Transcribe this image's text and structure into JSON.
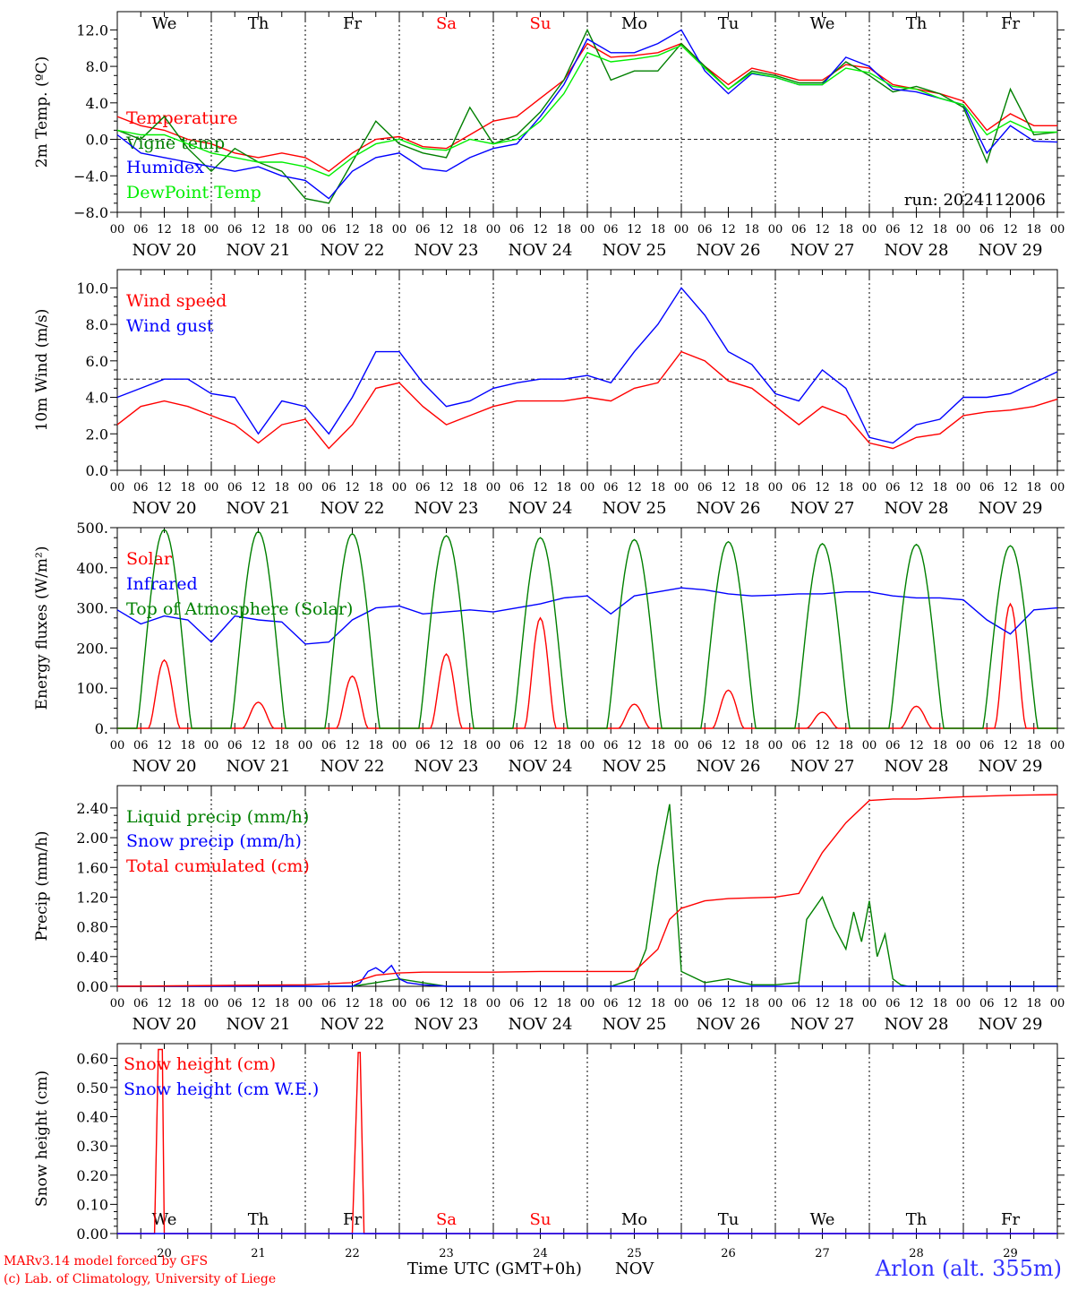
{
  "meta": {
    "run": "run: 2024112006",
    "credit_line1": "MARv3.14 model forced by GFS",
    "credit_line2": "(c) Lab. of Climatology, University of Liege",
    "x_title": "Time UTC (GMT+0h)",
    "x_unit": "NOV",
    "station": "Arlon (alt. 355m)",
    "dow": [
      "We",
      "Th",
      "Fr",
      "Sa",
      "Su",
      "Mo",
      "Tu",
      "We",
      "Th",
      "Fr"
    ],
    "weekend_color": "#ff0000",
    "hour_ticks": [
      "00",
      "06",
      "12",
      "18"
    ],
    "day_labels": [
      "NOV 20",
      "NOV 21",
      "NOV 22",
      "NOV 23",
      "NOV 24",
      "NOV 25",
      "NOV 26",
      "NOV 27",
      "NOV 28",
      "NOV 29"
    ],
    "day_numbers": [
      "20",
      "21",
      "22",
      "23",
      "24",
      "25",
      "26",
      "27",
      "28",
      "29"
    ]
  },
  "chart_data": [
    {
      "type": "line",
      "ylabel": "2m Temp. (ºC)",
      "ylim": [
        -8,
        14
      ],
      "yticks": [
        -8,
        -4,
        0,
        4,
        8,
        12
      ],
      "ytick_labels": [
        "−8.0",
        "−4.0",
        "0.0",
        "4.0",
        "8.0",
        "12.0"
      ],
      "x_unit": "hours since NOV 20 00 UTC",
      "xlim": [
        0,
        240
      ],
      "ref_line": 0,
      "series": [
        {
          "name": "Temperature",
          "color": "#ff0000",
          "x": [
            0,
            6,
            12,
            18,
            24,
            30,
            36,
            42,
            48,
            54,
            60,
            66,
            72,
            78,
            84,
            90,
            96,
            102,
            108,
            114,
            120,
            126,
            132,
            138,
            144,
            150,
            156,
            162,
            168,
            174,
            180,
            186,
            192,
            198,
            204,
            210,
            216,
            222,
            228,
            234,
            240
          ],
          "y": [
            2.5,
            1.5,
            1.0,
            0.0,
            -0.5,
            -1.5,
            -2.0,
            -1.5,
            -2.0,
            -3.5,
            -1.5,
            0.0,
            0.3,
            -0.8,
            -1.0,
            0.5,
            2.0,
            2.5,
            4.5,
            6.5,
            10.5,
            9.0,
            9.2,
            9.5,
            10.5,
            8.0,
            6.0,
            7.8,
            7.2,
            6.5,
            6.5,
            8.2,
            7.8,
            6.0,
            5.5,
            5.0,
            4.2,
            1.0,
            2.8,
            1.5,
            1.5
          ]
        },
        {
          "name": "Vigne temp",
          "color": "#008000",
          "x": [
            0,
            6,
            12,
            18,
            24,
            30,
            36,
            42,
            48,
            54,
            60,
            66,
            72,
            78,
            84,
            90,
            96,
            102,
            108,
            114,
            120,
            126,
            132,
            138,
            144,
            150,
            156,
            162,
            168,
            174,
            180,
            186,
            192,
            198,
            204,
            210,
            216,
            222,
            228,
            234,
            240
          ],
          "y": [
            1.0,
            0.0,
            2.5,
            -1.0,
            -3.5,
            -1.0,
            -2.5,
            -3.5,
            -6.5,
            -7.0,
            -2.5,
            2.0,
            -0.5,
            -1.5,
            -2.0,
            3.5,
            -0.5,
            0.5,
            3.0,
            6.5,
            12.0,
            6.5,
            7.5,
            7.5,
            10.5,
            8.0,
            5.5,
            7.5,
            7.0,
            6.2,
            6.2,
            8.5,
            7.0,
            5.2,
            5.8,
            5.0,
            3.5,
            -2.5,
            5.5,
            0.5,
            0.8
          ]
        },
        {
          "name": "Humidex",
          "color": "#0000ff",
          "x": [
            0,
            6,
            12,
            18,
            24,
            30,
            36,
            42,
            48,
            54,
            60,
            66,
            72,
            78,
            84,
            90,
            96,
            102,
            108,
            114,
            120,
            126,
            132,
            138,
            144,
            150,
            156,
            162,
            168,
            174,
            180,
            186,
            192,
            198,
            204,
            210,
            216,
            222,
            228,
            234,
            240
          ],
          "y": [
            0.5,
            -1.5,
            -2.0,
            -2.5,
            -3.0,
            -3.5,
            -3.0,
            -4.0,
            -4.5,
            -6.5,
            -3.5,
            -2.0,
            -1.5,
            -3.2,
            -3.5,
            -2.0,
            -1.0,
            -0.5,
            2.5,
            6.0,
            11.0,
            9.5,
            9.5,
            10.5,
            12.0,
            7.5,
            5.0,
            7.2,
            6.8,
            6.0,
            6.0,
            9.0,
            8.0,
            5.5,
            5.2,
            4.5,
            3.8,
            -1.5,
            1.5,
            -0.2,
            -0.3
          ]
        },
        {
          "name": "DewPoint Temp",
          "color": "#00ee00",
          "x": [
            0,
            6,
            12,
            18,
            24,
            30,
            36,
            42,
            48,
            54,
            60,
            66,
            72,
            78,
            84,
            90,
            96,
            102,
            108,
            114,
            120,
            126,
            132,
            138,
            144,
            150,
            156,
            162,
            168,
            174,
            180,
            186,
            192,
            198,
            204,
            210,
            216,
            222,
            228,
            234,
            240
          ],
          "y": [
            1.0,
            0.5,
            0.5,
            -0.5,
            -1.5,
            -2.0,
            -2.5,
            -2.5,
            -3.0,
            -4.0,
            -2.0,
            -0.5,
            0.0,
            -1.0,
            -1.2,
            0.0,
            -0.5,
            0.0,
            2.0,
            5.0,
            9.5,
            8.5,
            8.8,
            9.2,
            10.3,
            7.8,
            5.5,
            7.3,
            6.8,
            6.0,
            6.0,
            7.8,
            7.3,
            5.8,
            5.5,
            4.5,
            3.8,
            0.5,
            2.0,
            0.8,
            0.8
          ]
        }
      ]
    },
    {
      "type": "line",
      "ylabel": "10m Wind (m/s)",
      "ylim": [
        0,
        11
      ],
      "yticks": [
        0,
        2,
        4,
        6,
        8,
        10
      ],
      "ytick_labels": [
        "0.0",
        "2.0",
        "4.0",
        "6.0",
        "8.0",
        "10.0"
      ],
      "xlim": [
        0,
        240
      ],
      "ref_line": 5,
      "series": [
        {
          "name": "Wind speed",
          "color": "#ff0000",
          "x": [
            0,
            6,
            12,
            18,
            24,
            30,
            36,
            42,
            48,
            54,
            60,
            66,
            72,
            78,
            84,
            90,
            96,
            102,
            108,
            114,
            120,
            126,
            132,
            138,
            144,
            150,
            156,
            162,
            168,
            174,
            180,
            186,
            192,
            198,
            204,
            210,
            216,
            222,
            228,
            234,
            240
          ],
          "y": [
            2.5,
            3.5,
            3.8,
            3.5,
            3.0,
            2.5,
            1.5,
            2.5,
            2.8,
            1.2,
            2.5,
            4.5,
            4.8,
            3.5,
            2.5,
            3.0,
            3.5,
            3.8,
            3.8,
            3.8,
            4.0,
            3.8,
            4.5,
            4.8,
            6.5,
            6.0,
            4.9,
            4.5,
            3.5,
            2.5,
            3.5,
            3.0,
            1.5,
            1.2,
            1.8,
            2.0,
            3.0,
            3.2,
            3.3,
            3.5,
            3.9
          ]
        },
        {
          "name": "Wind gust",
          "color": "#0000ff",
          "x": [
            0,
            6,
            12,
            18,
            24,
            30,
            36,
            42,
            48,
            54,
            60,
            66,
            72,
            78,
            84,
            90,
            96,
            102,
            108,
            114,
            120,
            126,
            132,
            138,
            144,
            150,
            156,
            162,
            168,
            174,
            180,
            186,
            192,
            198,
            204,
            210,
            216,
            222,
            228,
            234,
            240
          ],
          "y": [
            4.0,
            4.5,
            5.0,
            5.0,
            4.2,
            4.0,
            2.0,
            3.8,
            3.5,
            2.0,
            4.0,
            6.5,
            6.5,
            4.8,
            3.5,
            3.8,
            4.5,
            4.8,
            5.0,
            5.0,
            5.2,
            4.8,
            6.5,
            8.0,
            10.0,
            8.5,
            6.5,
            5.8,
            4.2,
            3.8,
            5.5,
            4.5,
            1.8,
            1.5,
            2.5,
            2.8,
            4.0,
            4.0,
            4.2,
            4.8,
            5.4
          ]
        }
      ]
    },
    {
      "type": "line",
      "ylabel": "Energy fluxes (W/m²)",
      "ylim": [
        0,
        500
      ],
      "yticks": [
        0,
        100,
        200,
        300,
        400,
        500
      ],
      "ytick_labels": [
        "0.",
        "100.",
        "200.",
        "300.",
        "400.",
        "500."
      ],
      "xlim": [
        0,
        240
      ],
      "series": [
        {
          "name": "Solar",
          "color": "#ff0000",
          "days": [
            {
              "d": 0,
              "peak": 170
            },
            {
              "d": 1,
              "peak": 65
            },
            {
              "d": 2,
              "peak": 130
            },
            {
              "d": 3,
              "peak": 185
            },
            {
              "d": 4,
              "peak": 275
            },
            {
              "d": 5,
              "peak": 60
            },
            {
              "d": 6,
              "peak": 95
            },
            {
              "d": 7,
              "peak": 40
            },
            {
              "d": 8,
              "peak": 55
            },
            {
              "d": 9,
              "peak": 310
            }
          ]
        },
        {
          "name": "Infrared",
          "color": "#0000ff",
          "x": [
            0,
            6,
            12,
            18,
            24,
            30,
            36,
            42,
            48,
            54,
            60,
            66,
            72,
            78,
            84,
            90,
            96,
            102,
            108,
            114,
            120,
            126,
            132,
            138,
            144,
            150,
            156,
            162,
            168,
            174,
            180,
            186,
            192,
            198,
            204,
            210,
            216,
            222,
            228,
            234,
            240
          ],
          "y": [
            295,
            260,
            280,
            270,
            215,
            280,
            270,
            265,
            210,
            215,
            270,
            300,
            305,
            285,
            290,
            295,
            290,
            300,
            310,
            325,
            330,
            285,
            330,
            340,
            350,
            345,
            335,
            330,
            332,
            335,
            335,
            340,
            340,
            330,
            325,
            325,
            320,
            270,
            235,
            295,
            300
          ]
        },
        {
          "name": "Top of Atmosphere (Solar)",
          "color": "#008000",
          "days": [
            {
              "d": 0,
              "peak": 495
            },
            {
              "d": 1,
              "peak": 490
            },
            {
              "d": 2,
              "peak": 485
            },
            {
              "d": 3,
              "peak": 480
            },
            {
              "d": 4,
              "peak": 475
            },
            {
              "d": 5,
              "peak": 470
            },
            {
              "d": 6,
              "peak": 465
            },
            {
              "d": 7,
              "peak": 460
            },
            {
              "d": 8,
              "peak": 458
            },
            {
              "d": 9,
              "peak": 455
            }
          ]
        }
      ]
    },
    {
      "type": "line",
      "ylabel": "Precip (mm/h)",
      "ylim": [
        0,
        2.7
      ],
      "yticks": [
        0,
        0.4,
        0.8,
        1.2,
        1.6,
        2.0,
        2.4
      ],
      "ytick_labels": [
        "0.00",
        "0.40",
        "0.80",
        "1.20",
        "1.60",
        "2.00",
        "2.40"
      ],
      "xlim": [
        0,
        240
      ],
      "series": [
        {
          "name": "Liquid precip (mm/h)",
          "color": "#008000",
          "x": [
            0,
            60,
            66,
            72,
            78,
            84,
            120,
            126,
            132,
            135,
            138,
            141,
            144,
            150,
            156,
            162,
            168,
            174,
            176,
            180,
            183,
            186,
            188,
            190,
            192,
            194,
            196,
            198,
            200,
            202,
            240
          ],
          "y": [
            0,
            0,
            0.05,
            0.1,
            0.05,
            0,
            0,
            0,
            0.1,
            0.5,
            1.6,
            2.45,
            0.2,
            0.05,
            0.1,
            0.02,
            0.02,
            0.05,
            0.9,
            1.2,
            0.8,
            0.5,
            1.0,
            0.6,
            1.15,
            0.4,
            0.7,
            0.1,
            0.02,
            0,
            0
          ]
        },
        {
          "name": "Snow precip (mm/h)",
          "color": "#0000ff",
          "x": [
            0,
            60,
            62,
            64,
            66,
            68,
            70,
            72,
            74,
            78,
            84,
            240
          ],
          "y": [
            0,
            0,
            0.05,
            0.2,
            0.25,
            0.18,
            0.28,
            0.1,
            0.05,
            0.02,
            0,
            0
          ]
        },
        {
          "name": "Total cumulated (cm)",
          "color": "#ff0000",
          "x": [
            0,
            48,
            60,
            66,
            72,
            78,
            84,
            96,
            108,
            120,
            132,
            138,
            141,
            144,
            150,
            156,
            168,
            174,
            180,
            186,
            192,
            198,
            204,
            216,
            228,
            240
          ],
          "y": [
            0,
            0.02,
            0.05,
            0.15,
            0.18,
            0.19,
            0.19,
            0.19,
            0.2,
            0.2,
            0.2,
            0.5,
            0.9,
            1.05,
            1.15,
            1.18,
            1.2,
            1.25,
            1.8,
            2.2,
            2.5,
            2.52,
            2.52,
            2.55,
            2.57,
            2.58
          ]
        }
      ]
    },
    {
      "type": "line",
      "ylabel": "Snow height (cm)",
      "ylim": [
        0,
        0.65
      ],
      "yticks": [
        0,
        0.1,
        0.2,
        0.3,
        0.4,
        0.5,
        0.6
      ],
      "ytick_labels": [
        "0.00",
        "0.10",
        "0.20",
        "0.30",
        "0.40",
        "0.50",
        "0.60"
      ],
      "xlim": [
        0,
        240
      ],
      "series": [
        {
          "name": "Snow height (cm)",
          "color": "#ff0000",
          "x": [
            0,
            9.5,
            10.5,
            11.5,
            12,
            60,
            61.5,
            62,
            63,
            240
          ],
          "y": [
            0,
            0,
            0.63,
            0.63,
            0,
            0,
            0.62,
            0.62,
            0,
            0
          ]
        },
        {
          "name": "Snow height (cm W.E.)",
          "color": "#0000ff",
          "x": [
            0,
            240
          ],
          "y": [
            0,
            0
          ]
        }
      ]
    }
  ]
}
